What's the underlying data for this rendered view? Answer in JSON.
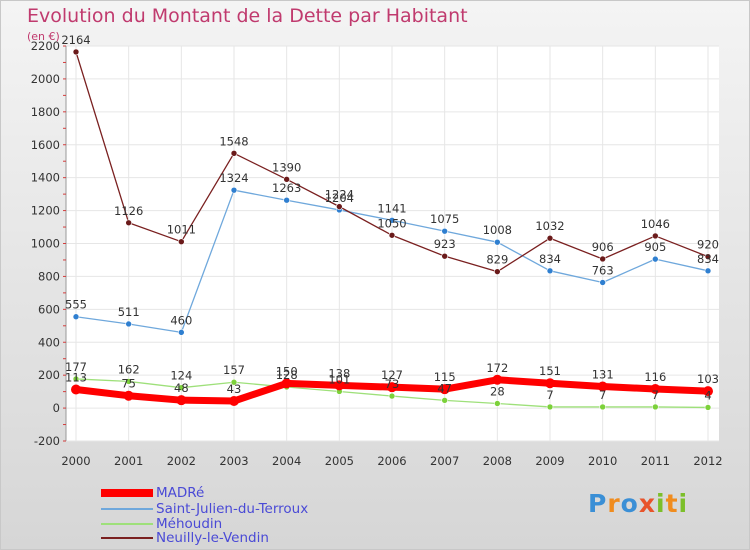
{
  "title": "Evolution du Montant de la Dette par Habitant",
  "unit_label": "(en €)",
  "logo": {
    "letters": [
      "P",
      "r",
      "o",
      "x",
      "i",
      "t",
      "i"
    ],
    "colors": [
      "#3a8fd6",
      "#f08c1e",
      "#3a8fd6",
      "#e8542b",
      "#7cbf2a",
      "#f08c1e",
      "#7cbf2a"
    ]
  },
  "colors": {
    "title": "#c03a6e",
    "legend_text": "#4a4ad6",
    "axis_text": "#333333",
    "grid": "#e6e6e6"
  },
  "chart_data": {
    "type": "line",
    "categories": [
      "2000",
      "2001",
      "2002",
      "2003",
      "2004",
      "2005",
      "2006",
      "2007",
      "2008",
      "2009",
      "2010",
      "2011",
      "2012"
    ],
    "ylim": [
      -200,
      2200
    ],
    "yticks": [
      "-200",
      "0",
      "200",
      "400",
      "600",
      "800",
      "1000",
      "1200",
      "1400",
      "1600",
      "1800",
      "2000",
      "2200"
    ],
    "grid": true,
    "legend_position": "bottom-left",
    "series": [
      {
        "name": "MADRé",
        "color": "#ff0000",
        "marker": "#ff0000",
        "width": 7,
        "values": [
          113,
          75,
          48,
          43,
          150,
          138,
          127,
          115,
          172,
          151,
          131,
          116,
          103
        ],
        "labels": [
          "113",
          "75",
          "48",
          "43",
          "150",
          "138",
          "127",
          "115",
          "172",
          "151",
          "131",
          "116",
          "103"
        ]
      },
      {
        "name": "Saint-Julien-du-Terroux",
        "color": "#6fa8dc",
        "marker": "#2f7fd0",
        "width": 1.3,
        "values": [
          555,
          511,
          460,
          1324,
          1263,
          1204,
          1141,
          1075,
          1008,
          834,
          763,
          905,
          834
        ],
        "labels": [
          "555",
          "511",
          "460",
          "1324",
          "1263",
          "1204",
          "1141",
          "1075",
          "1008",
          "834",
          "763",
          "905",
          "834"
        ]
      },
      {
        "name": "Méhoudin",
        "color": "#9ee07a",
        "marker": "#7cd13a",
        "width": 1.3,
        "values": [
          177,
          162,
          124,
          157,
          128,
          101,
          73,
          47,
          28,
          7,
          7,
          7,
          4
        ],
        "labels": [
          "177",
          "162",
          "124",
          "157",
          "128",
          "101",
          "73",
          "47",
          "28",
          "7",
          "7",
          "7",
          "4"
        ]
      },
      {
        "name": "Neuilly-le-Vendin",
        "color": "#7a2020",
        "marker": "#6a1a1a",
        "width": 1.3,
        "values": [
          2164,
          1126,
          1011,
          1548,
          1390,
          1224,
          1050,
          923,
          829,
          1032,
          906,
          1046,
          920
        ],
        "labels": [
          "2164",
          "1126",
          "1011",
          "1548",
          "1390",
          "1224",
          "1050",
          "923",
          "829",
          "1032",
          "906",
          "1046",
          "920"
        ]
      }
    ]
  }
}
